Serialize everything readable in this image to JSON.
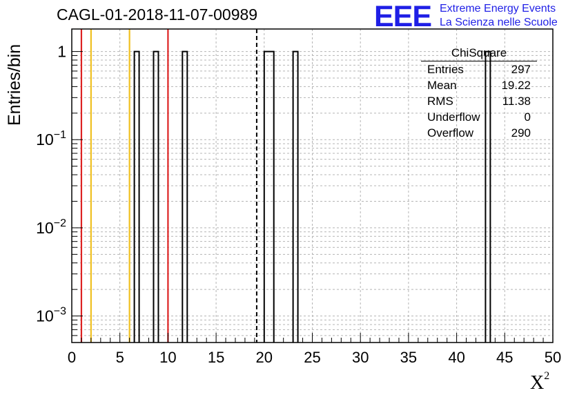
{
  "title": "CAGL-01-2018-11-07-00989",
  "logo": {
    "mark": "EEE",
    "line1": "Extreme Energy Events",
    "line2": "La Scienza nelle Scuole",
    "color": "#1f1fe6"
  },
  "stats": {
    "name": "ChiSquare",
    "rows": [
      {
        "label": "Entries",
        "value": "297"
      },
      {
        "label": "Mean",
        "value": "19.22"
      },
      {
        "label": "RMS",
        "value": "11.38"
      },
      {
        "label": "Underflow",
        "value": "0"
      },
      {
        "label": "Overflow",
        "value": "290"
      }
    ]
  },
  "chart_data": {
    "type": "bar",
    "histogram": true,
    "xlabel": "X",
    "xlabel_superscript": "2",
    "ylabel": "Entries/bin",
    "xlim": [
      0,
      50
    ],
    "ylim": [
      0.0005,
      1.8
    ],
    "yscale": "log",
    "grid": true,
    "bin_width": 0.5,
    "x_ticks": [
      "0",
      "5",
      "10",
      "15",
      "20",
      "25",
      "30",
      "35",
      "40",
      "45",
      "50"
    ],
    "y_ticks": [
      {
        "value": 1,
        "base": "1",
        "exp": ""
      },
      {
        "value": 0.1,
        "base": "10",
        "exp": "−1"
      },
      {
        "value": 0.01,
        "base": "10",
        "exp": "−2"
      },
      {
        "value": 0.001,
        "base": "10",
        "exp": "−3"
      }
    ],
    "bins": [
      {
        "x_low": 6.5,
        "x_high": 7.0,
        "value": 1
      },
      {
        "x_low": 8.5,
        "x_high": 9.0,
        "value": 1
      },
      {
        "x_low": 11.5,
        "x_high": 12.0,
        "value": 1
      },
      {
        "x_low": 20.0,
        "x_high": 21.0,
        "value": 1
      },
      {
        "x_low": 23.0,
        "x_high": 23.5,
        "value": 1
      },
      {
        "x_low": 43.0,
        "x_high": 43.5,
        "value": 1
      }
    ],
    "vertical_lines": [
      {
        "x": 1.0,
        "color": "#dd2222",
        "style": "solid"
      },
      {
        "x": 2.0,
        "color": "#f0c020",
        "style": "solid"
      },
      {
        "x": 6.0,
        "color": "#f0c020",
        "style": "solid"
      },
      {
        "x": 10.0,
        "color": "#dd2222",
        "style": "solid"
      },
      {
        "x": 19.22,
        "color": "#000000",
        "style": "dashed"
      }
    ]
  }
}
